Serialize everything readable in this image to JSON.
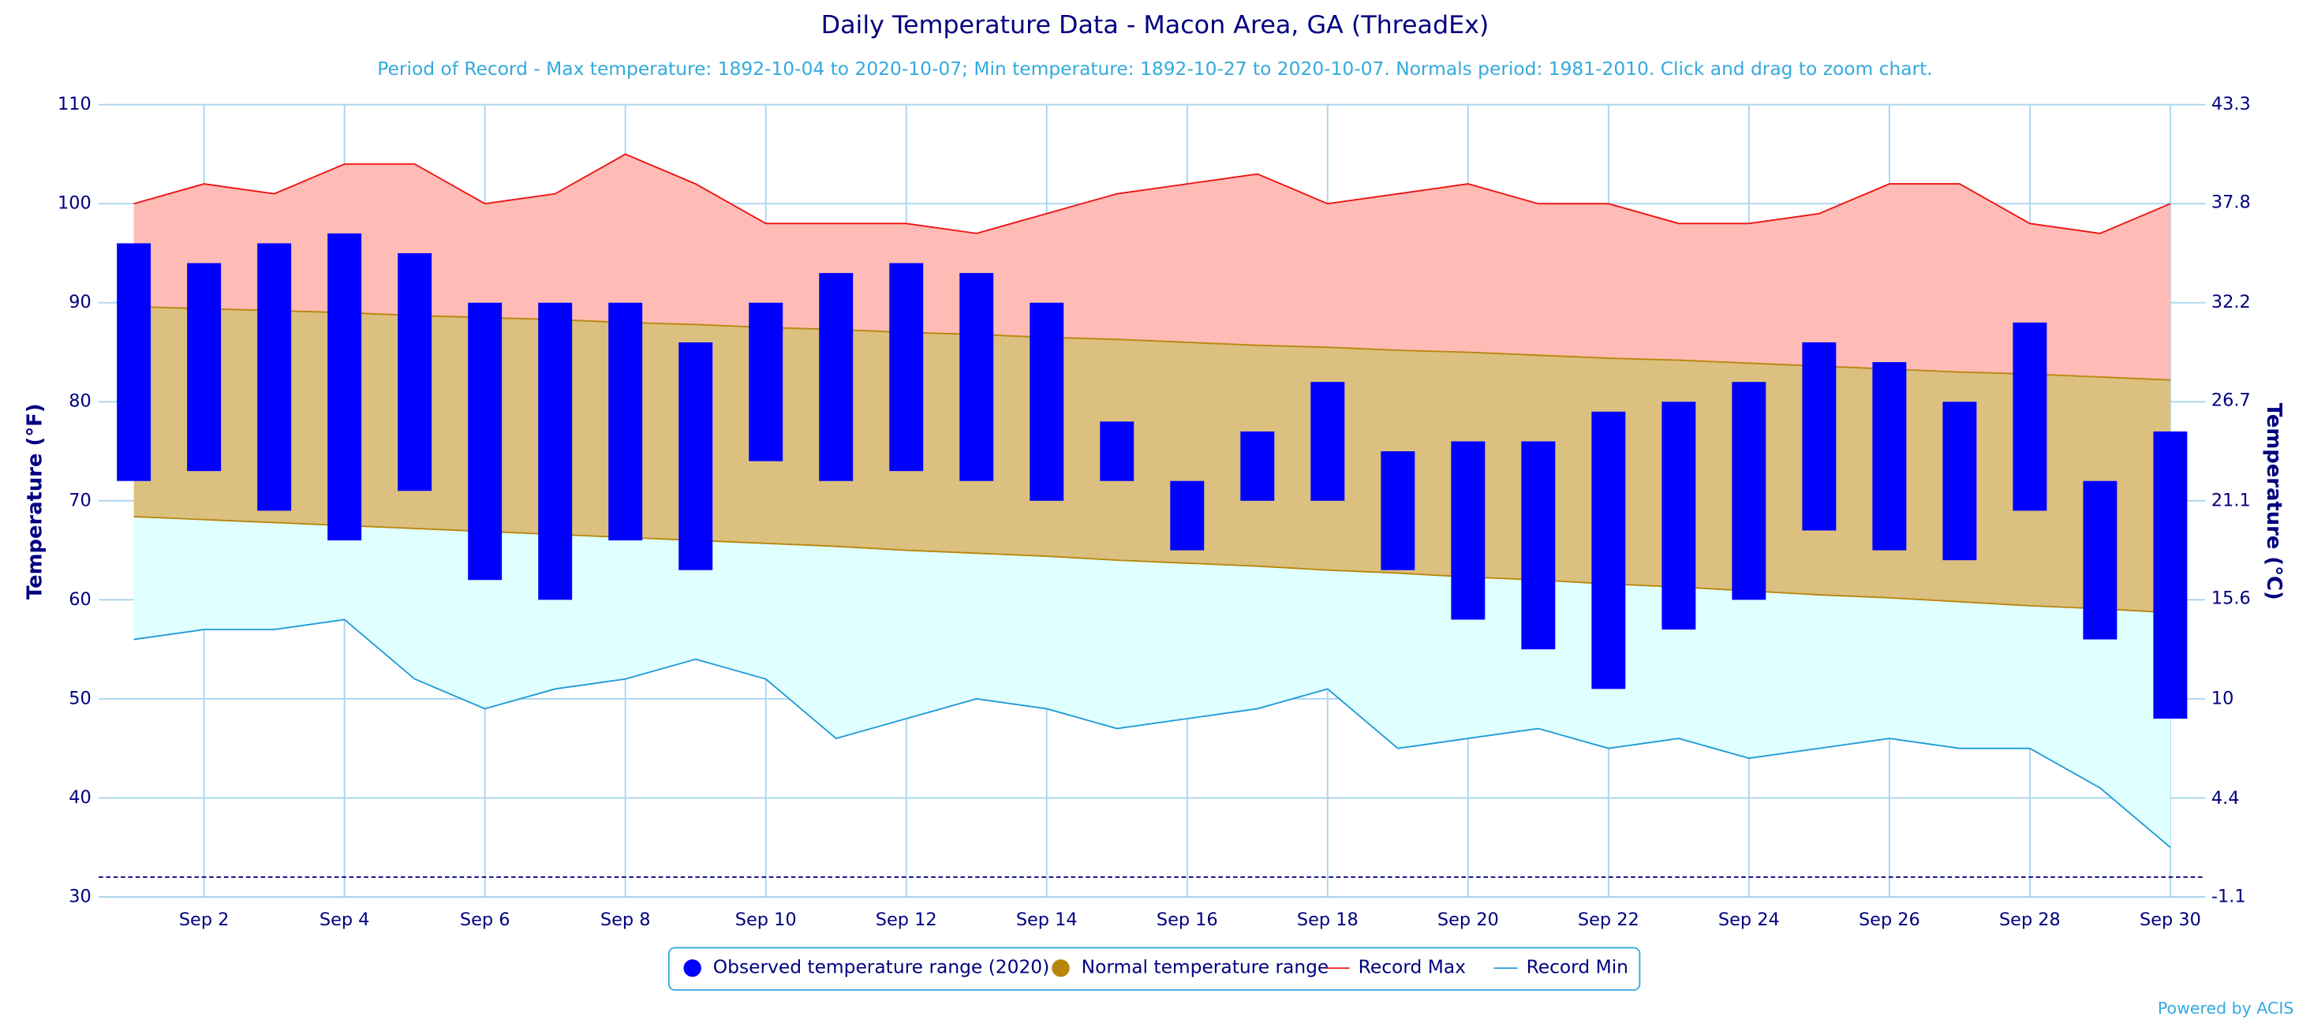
{
  "chart_data": {
    "type": "range-bar",
    "title": "Daily Temperature Data - Macon Area, GA (ThreadEx)",
    "subtitle": "Period of Record - Max temperature: 1892-10-04 to 2020-10-07; Min temperature: 1892-10-27 to 2020-10-07. Normals period: 1981-2010. Click and drag to zoom chart.",
    "y_label": "Temperature (°F)",
    "y2_label": "Temperature (°C)",
    "footer": "Powered by ACIS",
    "categories": [
      null,
      "Sep 2",
      null,
      "Sep 4",
      null,
      "Sep 6",
      null,
      "Sep 8",
      null,
      "Sep 10",
      null,
      "Sep 12",
      null,
      "Sep 14",
      null,
      "Sep 16",
      null,
      "Sep 18",
      null,
      "Sep 20",
      null,
      "Sep 22",
      null,
      "Sep 24",
      null,
      "Sep 26",
      null,
      "Sep 28",
      null,
      "Sep 30"
    ],
    "ylim": [
      30,
      110
    ],
    "yticks": [
      30,
      40,
      50,
      60,
      70,
      80,
      90,
      100,
      110
    ],
    "y2lim": [
      -1.1,
      43.3
    ],
    "y2ticks": [
      -1.1,
      4.4,
      10,
      15.6,
      21.1,
      26.7,
      32.2,
      37.8,
      43.3
    ],
    "freezing": 32,
    "grid": true,
    "series": [
      {
        "name": "Observed temperature range (2020)",
        "color": "#0000ff",
        "high": [
          96,
          94,
          96,
          97,
          95,
          90,
          90,
          90,
          86,
          90,
          93,
          94,
          93,
          90,
          78,
          72,
          77,
          82,
          75,
          76,
          76,
          79,
          80,
          82,
          86,
          84,
          80,
          88,
          72,
          77
        ],
        "low": [
          72,
          73,
          69,
          66,
          71,
          62,
          60,
          66,
          63,
          74,
          72,
          73,
          72,
          70,
          72,
          65,
          70,
          70,
          63,
          58,
          55,
          51,
          57,
          60,
          67,
          65,
          64,
          69,
          56,
          48
        ]
      },
      {
        "name": "Normal temperature range",
        "color": "#b8860b",
        "high": [
          89.6,
          89.4,
          89.2,
          89.0,
          88.7,
          88.5,
          88.3,
          88.0,
          87.8,
          87.5,
          87.3,
          87.0,
          86.8,
          86.5,
          86.3,
          86.0,
          85.7,
          85.5,
          85.2,
          85.0,
          84.7,
          84.4,
          84.2,
          83.9,
          83.6,
          83.3,
          83.0,
          82.8,
          82.5,
          82.2
        ],
        "low": [
          68.4,
          68.1,
          67.8,
          67.5,
          67.2,
          66.9,
          66.6,
          66.3,
          66.0,
          65.7,
          65.4,
          65.0,
          64.7,
          64.4,
          64.0,
          63.7,
          63.4,
          63.0,
          62.7,
          62.3,
          62.0,
          61.6,
          61.3,
          60.9,
          60.5,
          60.2,
          59.8,
          59.4,
          59.1,
          58.7
        ]
      },
      {
        "name": "Record Max",
        "color": "#ee1111",
        "values": [
          100,
          102,
          101,
          104,
          104,
          100,
          101,
          105,
          102,
          98,
          98,
          98,
          97,
          99,
          101,
          102,
          103,
          100,
          101,
          102,
          100,
          100,
          98,
          98,
          99,
          102,
          102,
          98,
          97,
          100
        ]
      },
      {
        "name": "Record Min",
        "color": "#1e9bd7",
        "values": [
          56,
          57,
          57,
          58,
          52,
          49,
          51,
          52,
          54,
          52,
          46,
          48,
          50,
          49,
          47,
          48,
          49,
          51,
          45,
          46,
          47,
          45,
          46,
          44,
          45,
          46,
          45,
          45,
          41,
          35
        ]
      }
    ]
  }
}
